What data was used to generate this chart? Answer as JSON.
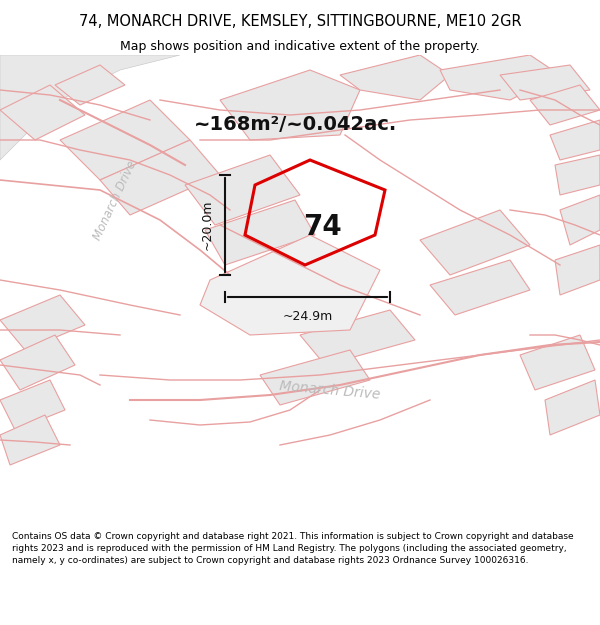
{
  "title_line1": "74, MONARCH DRIVE, KEMSLEY, SITTINGBOURNE, ME10 2GR",
  "title_line2": "Map shows position and indicative extent of the property.",
  "area_text": "~168m²/~0.042ac.",
  "property_number": "74",
  "dim_vertical": "~20.0m",
  "dim_horizontal": "~24.9m",
  "road_label_1": "Monarch Drive",
  "road_label_2": "Monarch Drive",
  "footer_text": "Contains OS data © Crown copyright and database right 2021. This information is subject to Crown copyright and database rights 2023 and is reproduced with the permission of HM Land Registry. The polygons (including the associated geometry, namely x, y co-ordinates) are subject to Crown copyright and database rights 2023 Ordnance Survey 100026316.",
  "bg_color": "#ffffff",
  "map_bg": "#ffffff",
  "building_fill": "#e8e8e8",
  "building_edge": "#cccccc",
  "road_stroke": "#e8a0a0",
  "road_stroke2": "#f0c0c0",
  "property_stroke": "#dd0000",
  "dim_color": "#111111",
  "title_color": "#000000",
  "footer_color": "#000000",
  "road_label_color": "#bbbbbb",
  "property_label_color": "#111111",
  "area_text_color": "#111111"
}
